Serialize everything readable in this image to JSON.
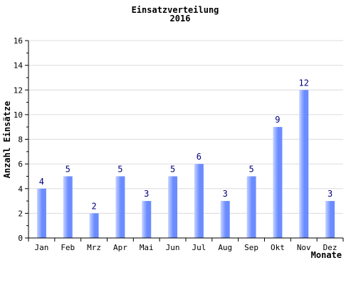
{
  "chart_data": {
    "type": "bar",
    "title": "Einsatzverteilung",
    "subtitle": "2016",
    "xlabel": "Monate",
    "ylabel": "Anzahl Einsätze",
    "categories": [
      "Jan",
      "Feb",
      "Mrz",
      "Apr",
      "Mai",
      "Jun",
      "Jul",
      "Aug",
      "Sep",
      "Okt",
      "Nov",
      "Dez"
    ],
    "values": [
      4,
      5,
      2,
      5,
      3,
      5,
      6,
      3,
      5,
      9,
      12,
      3
    ],
    "ylim": [
      0,
      16
    ],
    "yticks": [
      0,
      2,
      4,
      6,
      8,
      10,
      12,
      14,
      16
    ],
    "grid": true,
    "legend": "none",
    "bar_color": "#6b8cff",
    "bar_highlight_color": "#c7d4ff",
    "label_color": "#000080"
  }
}
